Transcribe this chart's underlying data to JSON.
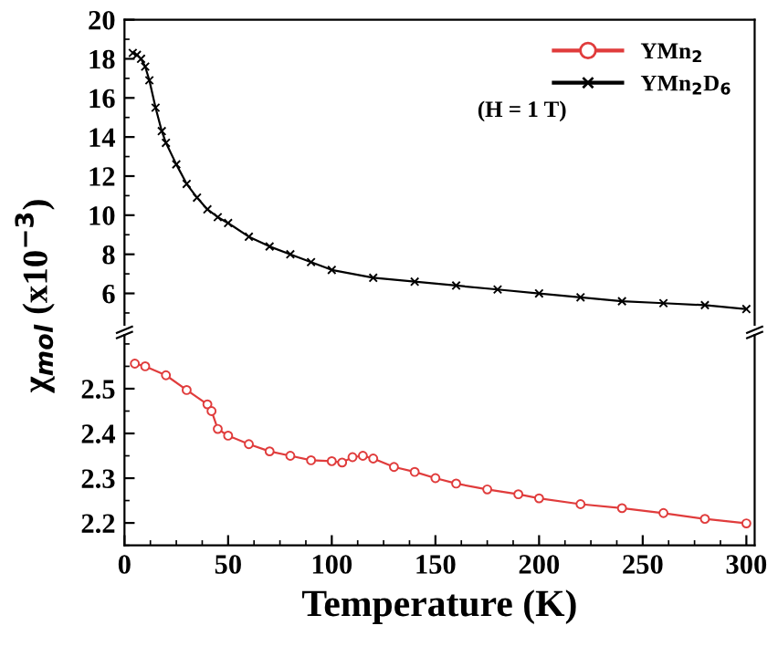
{
  "chart_data": [
    {
      "type": "line",
      "ylabel": "χ$_{mol}$ (x10$^{−3}$)",
      "xlim": [
        0,
        304
      ],
      "ylim": [
        4.4,
        20
      ],
      "yticks": [
        6,
        8,
        10,
        12,
        14,
        16,
        18,
        20
      ],
      "tick_labels": "y",
      "legend": "top right",
      "annotations": [
        "(H = 1 T)"
      ],
      "series": [
        {
          "name": "YMn$_{2}$D$_{6}$",
          "color": "#000000",
          "marker": "cross",
          "line_style": "solid",
          "x": [
            4,
            6,
            8,
            10,
            12,
            15,
            18,
            20,
            25,
            30,
            35,
            40,
            45,
            50,
            60,
            70,
            80,
            90,
            100,
            120,
            140,
            160,
            180,
            200,
            220,
            240,
            260,
            280,
            300
          ],
          "values": [
            18.3,
            18.2,
            18.0,
            17.6,
            16.9,
            15.5,
            14.3,
            13.7,
            12.6,
            11.6,
            10.9,
            10.3,
            9.9,
            9.6,
            8.9,
            8.4,
            8.0,
            7.6,
            7.2,
            6.8,
            6.6,
            6.4,
            6.2,
            6.0,
            5.8,
            5.6,
            5.5,
            5.4,
            5.2
          ]
        }
      ]
    },
    {
      "type": "line",
      "xlabel": "Temperature (K)",
      "xlim": [
        0,
        304
      ],
      "xticks": [
        0,
        50,
        100,
        150,
        200,
        250,
        300
      ],
      "ylim": [
        2.15,
        2.62
      ],
      "yticks": [
        2.2,
        2.3,
        2.4,
        2.5
      ],
      "series": [
        {
          "name": "YMn$_{2}$",
          "color": "#e03c3c",
          "marker": "circle",
          "line_style": "solid",
          "x": [
            5,
            10,
            20,
            30,
            40,
            42,
            45,
            50,
            60,
            70,
            80,
            90,
            100,
            105,
            110,
            115,
            120,
            130,
            140,
            150,
            160,
            175,
            190,
            200,
            220,
            240,
            260,
            280,
            300
          ],
          "values": [
            2.556,
            2.55,
            2.53,
            2.497,
            2.465,
            2.45,
            2.41,
            2.395,
            2.376,
            2.36,
            2.35,
            2.34,
            2.338,
            2.335,
            2.347,
            2.35,
            2.344,
            2.325,
            2.314,
            2.3,
            2.288,
            2.275,
            2.264,
            2.255,
            2.242,
            2.233,
            2.222,
            2.209,
            2.199
          ]
        }
      ]
    }
  ]
}
